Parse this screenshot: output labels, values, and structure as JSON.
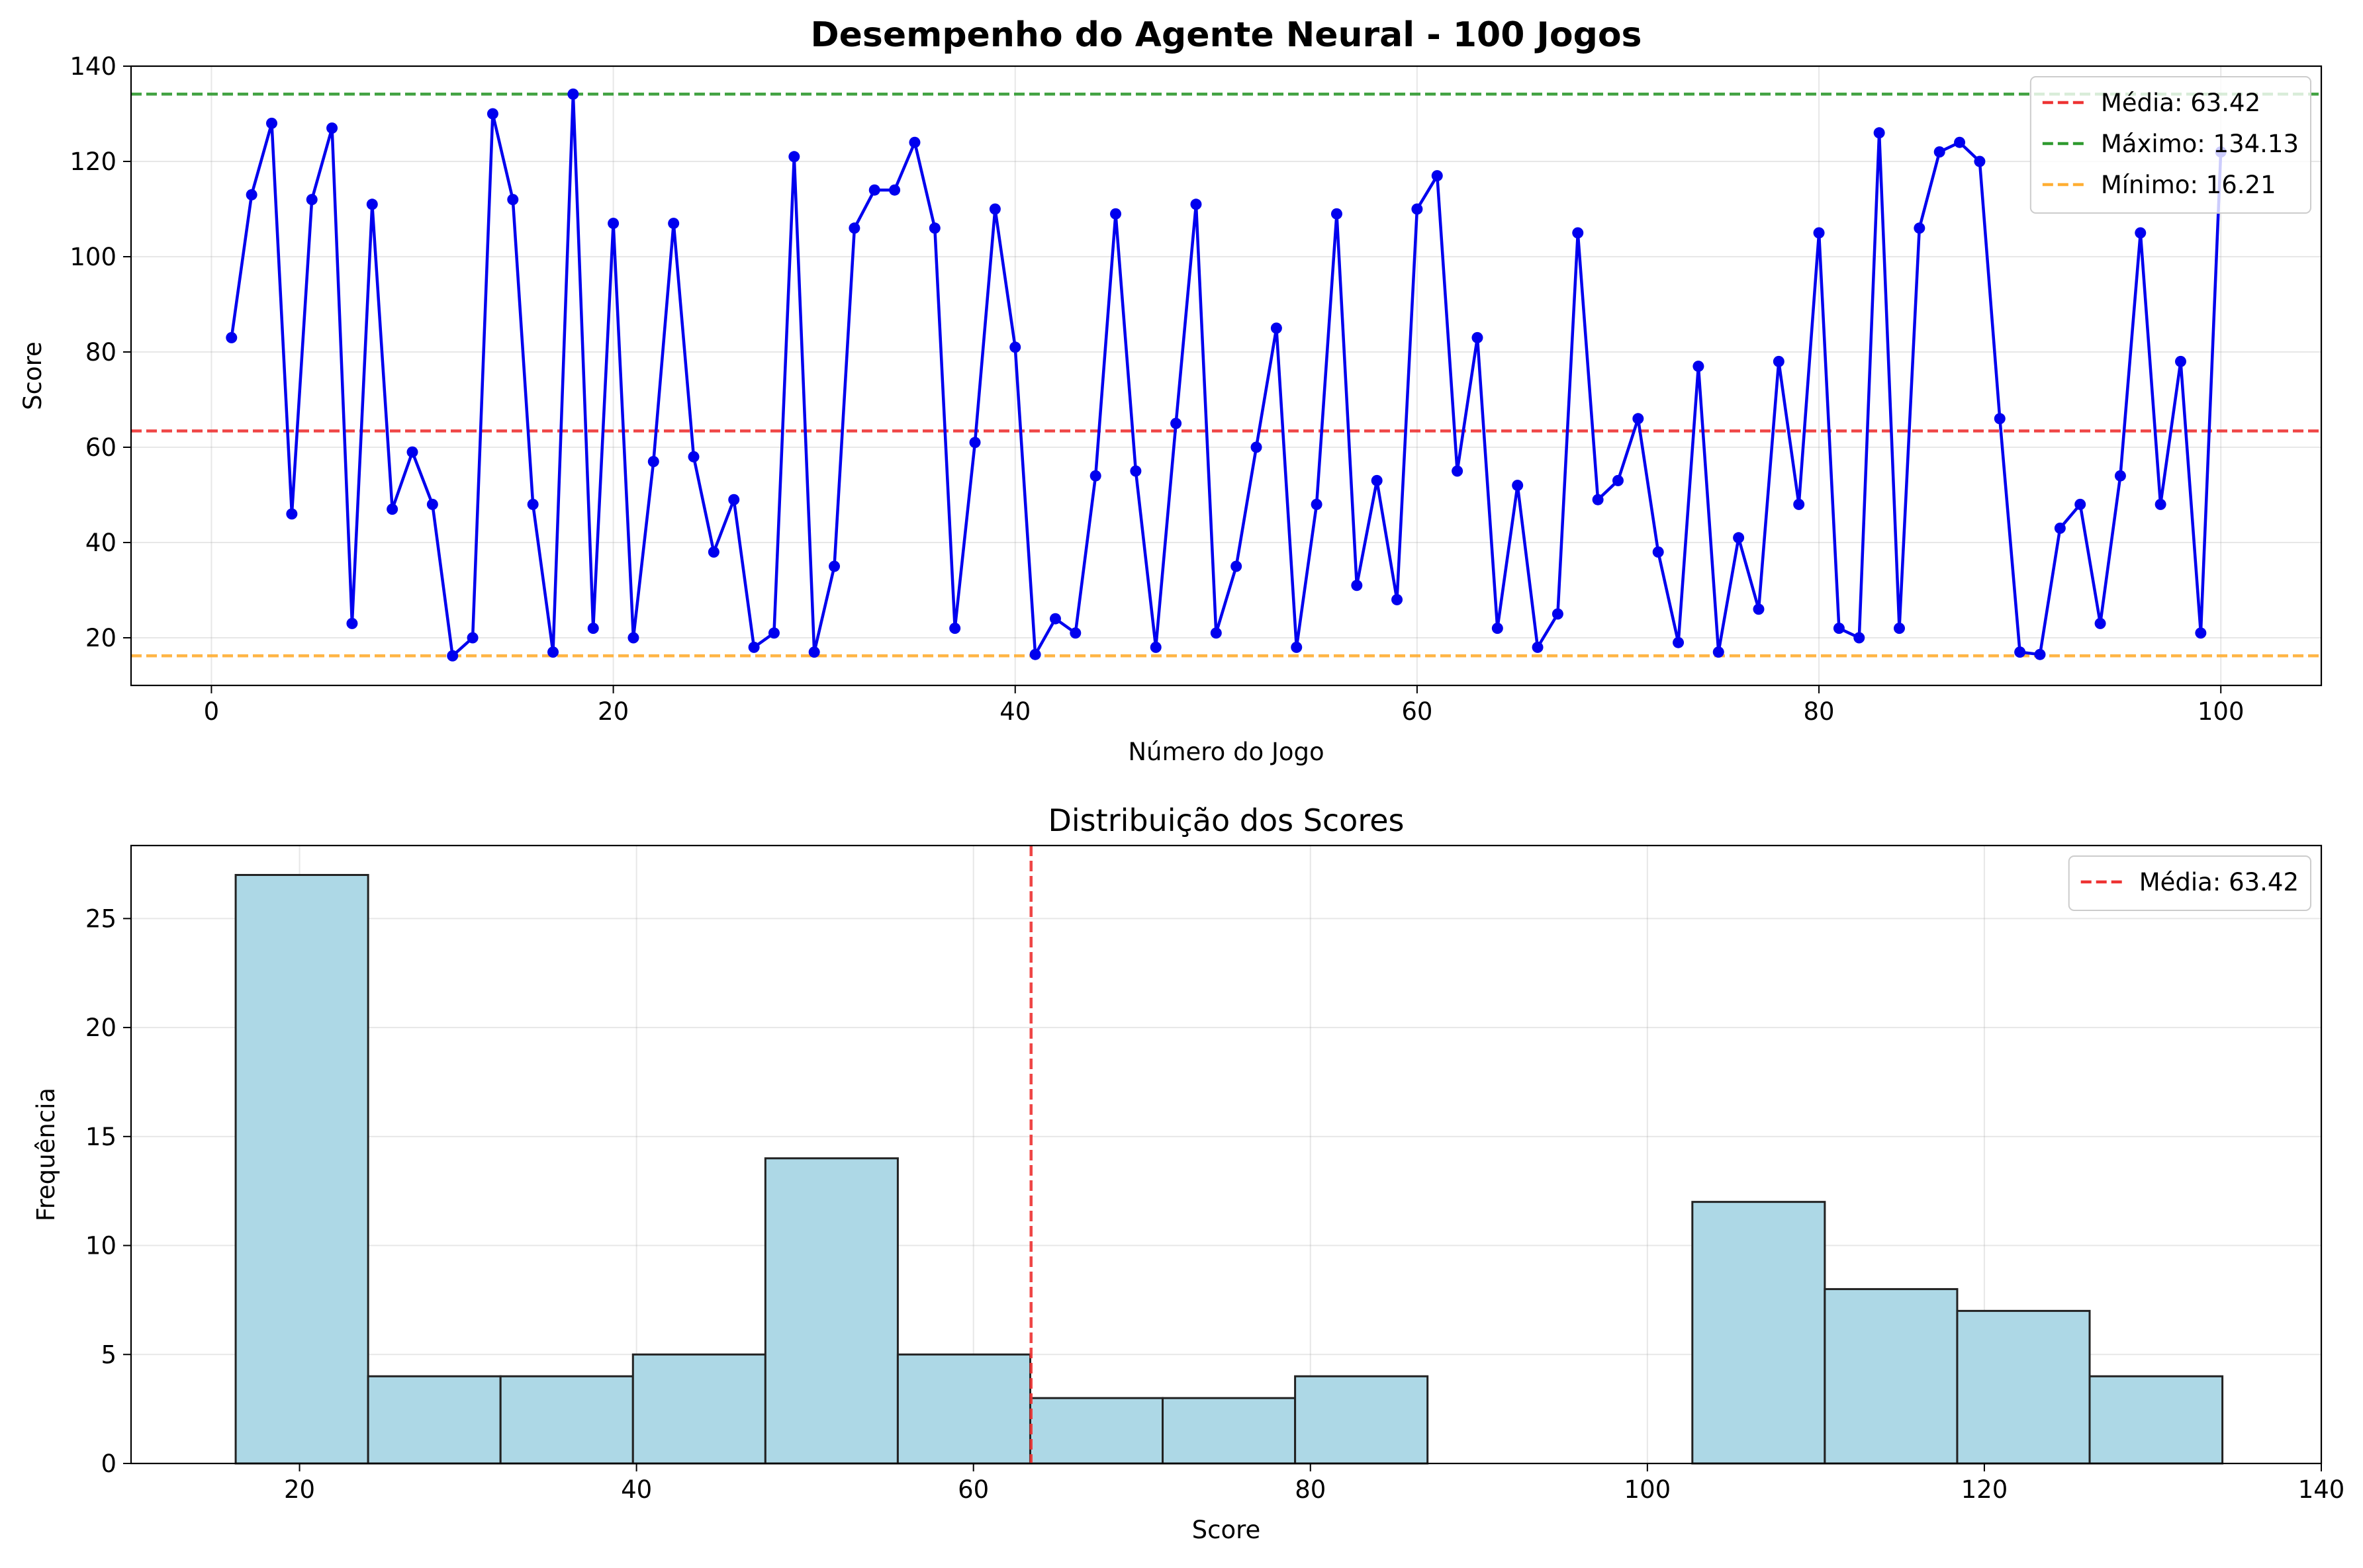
{
  "chart_data": [
    {
      "type": "line",
      "title": "Desempenho do Agente Neural - 100 Jogos",
      "xlabel": "Número do Jogo",
      "ylabel": "Score",
      "xlim": [
        -4,
        105
      ],
      "ylim": [
        10,
        140
      ],
      "xticks": [
        0,
        20,
        40,
        60,
        80,
        100
      ],
      "yticks": [
        20,
        40,
        60,
        80,
        100,
        120,
        140
      ],
      "grid": true,
      "legend_position": "top-right",
      "series": [
        {
          "color": "#0000ee",
          "x": [
            1,
            2,
            3,
            4,
            5,
            6,
            7,
            8,
            9,
            10,
            11,
            12,
            13,
            14,
            15,
            16,
            17,
            18,
            19,
            20,
            21,
            22,
            23,
            24,
            25,
            26,
            27,
            28,
            29,
            30,
            31,
            32,
            33,
            34,
            35,
            36,
            37,
            38,
            39,
            40,
            41,
            42,
            43,
            44,
            45,
            46,
            47,
            48,
            49,
            50,
            51,
            52,
            53,
            54,
            55,
            56,
            57,
            58,
            59,
            60,
            61,
            62,
            63,
            64,
            65,
            66,
            67,
            68,
            69,
            70,
            71,
            72,
            73,
            74,
            75,
            76,
            77,
            78,
            79,
            80,
            81,
            82,
            83,
            84,
            85,
            86,
            87,
            88,
            89,
            90,
            91,
            92,
            93,
            94,
            95,
            96,
            97,
            98,
            99,
            100
          ],
          "values": [
            83,
            113,
            128,
            46,
            112,
            127,
            23,
            111,
            47,
            59,
            48,
            16.21,
            20,
            130,
            112,
            48,
            17,
            134.13,
            22,
            107,
            20,
            57,
            107,
            58,
            38,
            49,
            18,
            21,
            121,
            17,
            35,
            106,
            114,
            114,
            124,
            106,
            22,
            61,
            110,
            81,
            16.5,
            24,
            21,
            54,
            109,
            55,
            18,
            65,
            111,
            21,
            35,
            60,
            85,
            18,
            48,
            109,
            31,
            53,
            28,
            110,
            117,
            55,
            83,
            22,
            52,
            18,
            25,
            105,
            49,
            53,
            66,
            38,
            19,
            77,
            17,
            41,
            26,
            78,
            48,
            105,
            22,
            20,
            126,
            22,
            106,
            122,
            124,
            120,
            66,
            17,
            16.5,
            43,
            48,
            23,
            54,
            105,
            48,
            78,
            21,
            122
          ]
        }
      ],
      "reference_lines": [
        {
          "label": "Média: 63.42",
          "value": 63.42,
          "color": "#ee3333"
        },
        {
          "label": "Máximo: 134.13",
          "value": 134.13,
          "color": "#2f9a2f"
        },
        {
          "label": "Mínimo: 16.21",
          "value": 16.21,
          "color": "#ffae33"
        }
      ]
    },
    {
      "type": "bar",
      "title": "Distribuição dos Scores",
      "xlabel": "Score",
      "ylabel": "Frequência",
      "xlim": [
        10,
        140
      ],
      "ylim": [
        0,
        28.35
      ],
      "xticks": [
        20,
        40,
        60,
        80,
        100,
        120,
        140
      ],
      "yticks": [
        0,
        5,
        10,
        15,
        20,
        25
      ],
      "grid": true,
      "legend_position": "top-right",
      "bar_color": "#add8e6",
      "bar_edge_color": "#222222",
      "bin_edges": [
        16.21,
        24.07,
        31.93,
        39.79,
        47.65,
        55.51,
        63.37,
        71.23,
        79.09,
        86.95,
        94.81,
        102.67,
        110.53,
        118.39,
        126.25,
        134.13
      ],
      "values": [
        27,
        4,
        4,
        5,
        14,
        5,
        3,
        3,
        4,
        0,
        0,
        12,
        8,
        7,
        4
      ],
      "reference_lines": [
        {
          "label": "Média: 63.42",
          "value": 63.42,
          "color": "#ee3333"
        }
      ]
    }
  ]
}
